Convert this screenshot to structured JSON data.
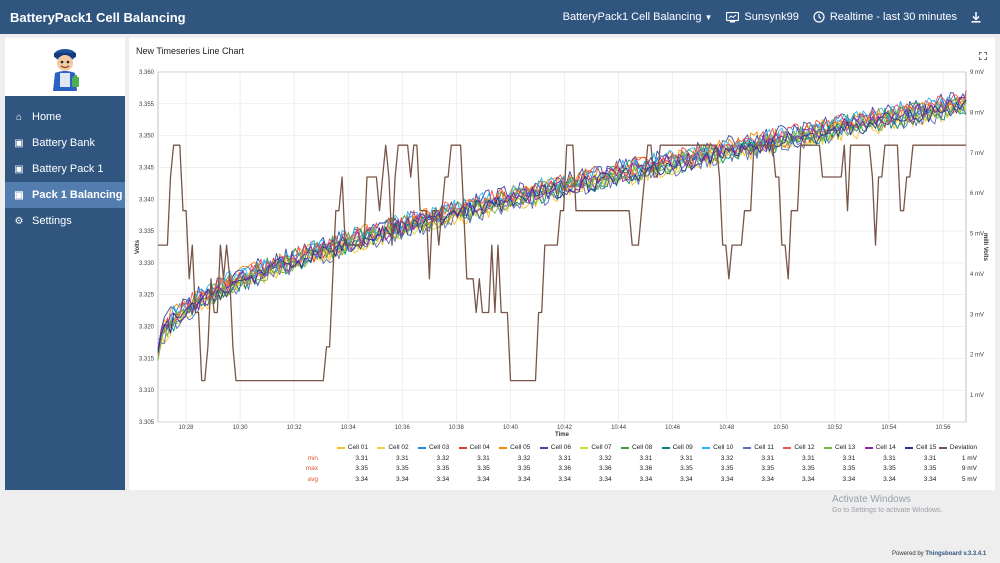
{
  "app": {
    "title": "BatteryPack1 Cell Balancing"
  },
  "topbar": {
    "state_label": "BatteryPack1 Cell Balancing",
    "entity_label": "Sunsynk99",
    "time_label": "Realtime - last 30 minutes"
  },
  "sidebar": {
    "items": [
      {
        "label": "Home",
        "icon": "home-icon"
      },
      {
        "label": "Battery Bank",
        "icon": "battery-icon"
      },
      {
        "label": "Battery Pack 1",
        "icon": "battery-icon"
      },
      {
        "label": "Pack 1 Balancing",
        "icon": "battery-icon",
        "active": true
      },
      {
        "label": "Settings",
        "icon": "gear-icon"
      }
    ]
  },
  "widget": {
    "title": "New Timeseries Line Chart"
  },
  "chart_data": {
    "type": "line",
    "xlabel": "Time",
    "ylabel": "Volts",
    "y2label": "milli Volts",
    "x_ticks": [
      "10:28",
      "10:30",
      "10:32",
      "10:34",
      "10:36",
      "10:38",
      "10:40",
      "10:42",
      "10:44",
      "10:46",
      "10:48",
      "10:50",
      "10:52",
      "10:54",
      "10:56"
    ],
    "ylim": [
      3.305,
      3.36
    ],
    "y_ticks": [
      "3.305",
      "3.310",
      "3.315",
      "3.320",
      "3.325",
      "3.330",
      "3.335",
      "3.340",
      "3.345",
      "3.350",
      "3.355",
      "3.360"
    ],
    "y2lim": [
      1,
      9
    ],
    "y2_ticks": [
      "1 mV",
      "2 mV",
      "3 mV",
      "4 mV",
      "5 mV",
      "6 mV",
      "7 mV",
      "8 mV",
      "9 mV"
    ],
    "grid": true,
    "series": [
      {
        "name": "Cell 01",
        "color": "#fbc02d",
        "min": "3.31",
        "max": "3.35",
        "avg": "3.34"
      },
      {
        "name": "Cell 02",
        "color": "#f4d03f",
        "min": "3.31",
        "max": "3.35",
        "avg": "3.34"
      },
      {
        "name": "Cell 03",
        "color": "#1e88e5",
        "min": "3.32",
        "max": "3.35",
        "avg": "3.34"
      },
      {
        "name": "Cell 04",
        "color": "#e53935",
        "min": "3.31",
        "max": "3.35",
        "avg": "3.34"
      },
      {
        "name": "Cell 05",
        "color": "#fb8c00",
        "min": "3.32",
        "max": "3.35",
        "avg": "3.34"
      },
      {
        "name": "Cell 06",
        "color": "#3949ab",
        "min": "3.31",
        "max": "3.36",
        "avg": "3.34"
      },
      {
        "name": "Cell 07",
        "color": "#cddc39",
        "min": "3.32",
        "max": "3.36",
        "avg": "3.34"
      },
      {
        "name": "Cell 08",
        "color": "#43a047",
        "min": "3.31",
        "max": "3.36",
        "avg": "3.34"
      },
      {
        "name": "Cell 09",
        "color": "#00897b",
        "min": "3.31",
        "max": "3.35",
        "avg": "3.34"
      },
      {
        "name": "Cell 10",
        "color": "#29b6f6",
        "min": "3.32",
        "max": "3.35",
        "avg": "3.34"
      },
      {
        "name": "Cell 11",
        "color": "#5c6bc0",
        "min": "3.31",
        "max": "3.35",
        "avg": "3.34"
      },
      {
        "name": "Cell 12",
        "color": "#ef5350",
        "min": "3.31",
        "max": "3.35",
        "avg": "3.34"
      },
      {
        "name": "Cell 13",
        "color": "#7cb342",
        "min": "3.31",
        "max": "3.35",
        "avg": "3.34"
      },
      {
        "name": "Cell 14",
        "color": "#8e24aa",
        "min": "3.31",
        "max": "3.35",
        "avg": "3.34"
      },
      {
        "name": "Cell 15",
        "color": "#283593",
        "min": "3.31",
        "max": "3.35",
        "avg": "3.34"
      },
      {
        "name": "Deviation",
        "color": "#795548",
        "min": "1 mV",
        "max": "9 mV",
        "avg": "5 mV"
      }
    ]
  },
  "legend_rows": {
    "min": "min",
    "max": "max",
    "avg": "avg"
  },
  "watermark": {
    "line1": "Activate Windows",
    "line2": "Go to Settings to activate Windows."
  },
  "footer": {
    "prefix": "Powered by",
    "brand": "Thingsboard v.3.3.4.1"
  }
}
